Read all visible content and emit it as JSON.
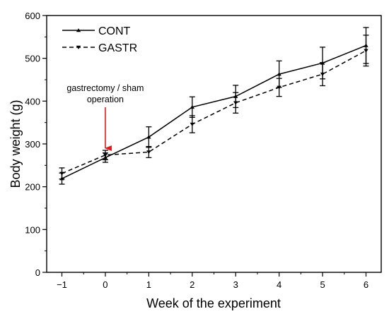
{
  "chart_data": {
    "type": "line",
    "title": "",
    "xlabel": "Week of the experiment",
    "ylabel": "Body weight (g)",
    "xlim": [
      -1.35,
      6.35
    ],
    "ylim": [
      0,
      600
    ],
    "x_ticks": [
      -1,
      0,
      1,
      2,
      3,
      4,
      5,
      6
    ],
    "x_tick_labels": [
      "−1",
      "0",
      "1",
      "2",
      "3",
      "4",
      "5",
      "6"
    ],
    "y_ticks": [
      0,
      100,
      200,
      300,
      400,
      500,
      600
    ],
    "y_tick_labels": [
      "0",
      "100",
      "200",
      "300",
      "400",
      "500",
      "600"
    ],
    "grid": false,
    "legend_position": "top-left",
    "series": [
      {
        "name": "CONT",
        "line_style": "solid",
        "marker": "triangle-up",
        "color": "#000000",
        "x": [
          -1,
          0,
          1,
          2,
          3,
          4,
          5,
          6
        ],
        "y": [
          219,
          268,
          316,
          386,
          411,
          463,
          489,
          530
        ],
        "error": [
          13,
          11,
          24,
          24,
          26,
          31,
          37,
          42
        ]
      },
      {
        "name": "GASTR",
        "line_style": "dashed",
        "marker": "triangle-down",
        "color": "#000000",
        "x": [
          -1,
          0,
          1,
          2,
          3,
          4,
          5,
          6
        ],
        "y": [
          231,
          274,
          281,
          346,
          396,
          432,
          463,
          518
        ],
        "error": [
          13,
          11,
          13,
          20,
          24,
          21,
          27,
          36
        ]
      }
    ],
    "annotations": [
      {
        "text_lines": [
          "gastrectomy / sham",
          "operation"
        ],
        "arrow_x": 0,
        "arrow_tip_y": 290,
        "arrow_color": "#e0191c"
      }
    ]
  }
}
